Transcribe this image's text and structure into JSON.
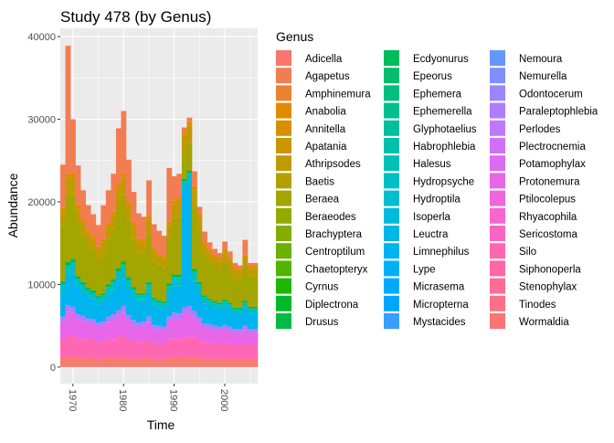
{
  "chart_data": {
    "type": "bar",
    "stacked": true,
    "title": "Study 478 (by Genus)",
    "xlabel": "Time",
    "ylabel": "Abundance",
    "xlim": [
      1967.5,
      2006.5
    ],
    "ylim": [
      -2000,
      41000
    ],
    "x_ticks": [
      1970,
      1980,
      1990,
      2000
    ],
    "y_ticks": [
      0,
      10000,
      20000,
      30000,
      40000
    ],
    "y_tick_labels": [
      "0",
      "10000",
      "20000",
      "30000",
      "40000"
    ],
    "x_tick_labels": [
      "1970",
      "1980",
      "1990",
      "2000"
    ],
    "grid": true,
    "legend": {
      "title": "Genus",
      "placement": "right",
      "columns": 3,
      "entries": [
        {
          "name": "Adicella",
          "color": "#F8766D"
        },
        {
          "name": "Agapetus",
          "color": "#F27D52"
        },
        {
          "name": "Amphinemura",
          "color": "#EA8331"
        },
        {
          "name": "Anabolia",
          "color": "#E28A00"
        },
        {
          "name": "Annitella",
          "color": "#D89000"
        },
        {
          "name": "Apatania",
          "color": "#CC9600"
        },
        {
          "name": "Athripsodes",
          "color": "#C09B00"
        },
        {
          "name": "Baetis",
          "color": "#B3A000"
        },
        {
          "name": "Beraea",
          "color": "#A3A500"
        },
        {
          "name": "Beraeodes",
          "color": "#93AA00"
        },
        {
          "name": "Brachyptera",
          "color": "#81AE00"
        },
        {
          "name": "Centroptilum",
          "color": "#6BB100"
        },
        {
          "name": "Chaetopteryx",
          "color": "#50B400"
        },
        {
          "name": "Cyrnus",
          "color": "#1FB700"
        },
        {
          "name": "Diplectrona",
          "color": "#00B929"
        },
        {
          "name": "Drusus",
          "color": "#00BB44"
        },
        {
          "name": "Ecdyonurus",
          "color": "#00BC59"
        },
        {
          "name": "Epeorus",
          "color": "#00BE6C"
        },
        {
          "name": "Ephemera",
          "color": "#00BF7D"
        },
        {
          "name": "Ephemerella",
          "color": "#00C08D"
        },
        {
          "name": "Glyphotaelius",
          "color": "#00C09C"
        },
        {
          "name": "Habrophlebia",
          "color": "#00C1AA"
        },
        {
          "name": "Halesus",
          "color": "#00C0B8"
        },
        {
          "name": "Hydropsyche",
          "color": "#00BFC4"
        },
        {
          "name": "Hydroptila",
          "color": "#00BDD0"
        },
        {
          "name": "Isoperla",
          "color": "#00BBDB"
        },
        {
          "name": "Leuctra",
          "color": "#00B8E5"
        },
        {
          "name": "Limnephilus",
          "color": "#00B4EF"
        },
        {
          "name": "Lype",
          "color": "#00B0F6"
        },
        {
          "name": "Micrasema",
          "color": "#00ABFD"
        },
        {
          "name": "Micropterna",
          "color": "#00A5FF"
        },
        {
          "name": "Mystacides",
          "color": "#369EFF"
        },
        {
          "name": "Nemoura",
          "color": "#6497FF"
        },
        {
          "name": "Nemurella",
          "color": "#808FFF"
        },
        {
          "name": "Odontocerum",
          "color": "#9A87FF"
        },
        {
          "name": "Paraleptophlebia",
          "color": "#AE7EFF"
        },
        {
          "name": "Perlodes",
          "color": "#C077FF"
        },
        {
          "name": "Plectrocnemia",
          "color": "#D070FF"
        },
        {
          "name": "Potamophylax",
          "color": "#DD6BF3"
        },
        {
          "name": "Protonemura",
          "color": "#E866E8"
        },
        {
          "name": "Ptilocolepus",
          "color": "#F066DC"
        },
        {
          "name": "Rhyacophila",
          "color": "#F766CF"
        },
        {
          "name": "Sericostoma",
          "color": "#FC66C2"
        },
        {
          "name": "Silo",
          "color": "#FF66B4"
        },
        {
          "name": "Siphonoperla",
          "color": "#FF68A4"
        },
        {
          "name": "Stenophylax",
          "color": "#FF6C95"
        },
        {
          "name": "Tinodes",
          "color": "#FF6F85"
        },
        {
          "name": "Wormaldia",
          "color": "#FD7476"
        }
      ]
    },
    "years": [
      1968,
      1969,
      1970,
      1971,
      1972,
      1973,
      1974,
      1975,
      1976,
      1977,
      1978,
      1979,
      1980,
      1981,
      1982,
      1983,
      1984,
      1985,
      1986,
      1987,
      1988,
      1989,
      1990,
      1991,
      1992,
      1993,
      1994,
      1995,
      1996,
      1997,
      1998,
      1999,
      2000,
      2001,
      2002,
      2003,
      2004,
      2005,
      2006
    ],
    "series": [
      {
        "color": "#F77B6E",
        "values": [
          1100,
          1100,
          1100,
          1100,
          1100,
          1100,
          1100,
          1000,
          1000,
          1100,
          1100,
          1100,
          1100,
          1000,
          1000,
          1000,
          1100,
          1100,
          1000,
          1000,
          1000,
          1100,
          1100,
          1100,
          1100,
          1100,
          1100,
          1100,
          1000,
          1000,
          1000,
          1000,
          1000,
          1000,
          1000,
          1000,
          1000,
          1000,
          1000
        ]
      },
      {
        "color": "#FF66B4",
        "values": [
          2200,
          2700,
          2700,
          2400,
          2300,
          2200,
          2200,
          2000,
          2100,
          2300,
          2300,
          2600,
          2700,
          2300,
          2100,
          2000,
          2000,
          2200,
          1900,
          1800,
          1800,
          2300,
          2400,
          2300,
          2500,
          2600,
          2500,
          2200,
          2000,
          1900,
          1800,
          1800,
          1900,
          1800,
          1700,
          1700,
          1800,
          1700,
          1700
        ]
      },
      {
        "color": "#E866E8",
        "values": [
          2200,
          2900,
          2800,
          2300,
          2200,
          2000,
          2000,
          1900,
          1900,
          2100,
          2300,
          2500,
          2800,
          2300,
          2000,
          1900,
          1900,
          2200,
          1700,
          1700,
          1600,
          2100,
          2400,
          2400,
          2800,
          2900,
          2500,
          2100,
          1800,
          1800,
          1700,
          1600,
          1700,
          1600,
          1500,
          1500,
          1700,
          1500,
          1500
        ]
      },
      {
        "color": "#AE7EFF",
        "values": [
          600,
          800,
          700,
          600,
          600,
          600,
          500,
          500,
          500,
          600,
          700,
          700,
          800,
          700,
          600,
          500,
          500,
          600,
          500,
          500,
          500,
          600,
          700,
          700,
          800,
          800,
          700,
          600,
          500,
          500,
          500,
          500,
          500,
          500,
          400,
          400,
          500,
          400,
          400
        ]
      },
      {
        "color": "#00B4EF",
        "values": [
          3000,
          3600,
          4000,
          3200,
          2800,
          2500,
          2400,
          2200,
          2400,
          2700,
          2900,
          3500,
          3700,
          3200,
          2800,
          2500,
          2400,
          2900,
          2300,
          2200,
          2100,
          2800,
          3200,
          3300,
          14300,
          15200,
          3600,
          3000,
          2400,
          2200,
          2100,
          2000,
          2200,
          2000,
          1800,
          1800,
          2100,
          1900,
          1900
        ]
      },
      {
        "color": "#00BFC4",
        "values": [
          1000,
          1200,
          1400,
          1100,
          1000,
          900,
          800,
          800,
          800,
          900,
          1000,
          1200,
          1300,
          1100,
          900,
          800,
          800,
          1000,
          800,
          700,
          700,
          900,
          1100,
          1100,
          1000,
          900,
          1200,
          1000,
          800,
          700,
          700,
          700,
          700,
          700,
          600,
          600,
          700,
          600,
          600
        ]
      },
      {
        "color": "#00BB44",
        "values": [
          300,
          400,
          400,
          300,
          300,
          300,
          300,
          200,
          200,
          300,
          300,
          400,
          400,
          300,
          300,
          200,
          200,
          300,
          200,
          200,
          200,
          300,
          300,
          300,
          300,
          300,
          300,
          300,
          200,
          200,
          200,
          200,
          200,
          200,
          200,
          200,
          200,
          200,
          200
        ]
      },
      {
        "color": "#A3A500",
        "values": [
          6700,
          8000,
          7800,
          6500,
          5700,
          5200,
          4800,
          4500,
          4900,
          5500,
          6100,
          7500,
          8000,
          6800,
          5800,
          5000,
          4800,
          5900,
          4500,
          4300,
          4100,
          5600,
          6700,
          7000,
          3200,
          3300,
          7500,
          6200,
          4800,
          4400,
          4200,
          4000,
          4500,
          4100,
          3600,
          3500,
          4100,
          3700,
          3700
        ]
      },
      {
        "color": "#C09B00",
        "values": [
          1700,
          2100,
          2000,
          1700,
          1500,
          1400,
          1300,
          1200,
          1300,
          1500,
          1600,
          2000,
          2100,
          1800,
          1500,
          1300,
          1300,
          1600,
          1200,
          1100,
          1100,
          1500,
          1800,
          1800,
          2000,
          2100,
          2000,
          1600,
          1300,
          1200,
          1100,
          1100,
          1200,
          1100,
          1000,
          900,
          1100,
          1000,
          1000
        ]
      },
      {
        "color": "#E28A00",
        "values": [
          500,
          600,
          600,
          500,
          400,
          400,
          400,
          300,
          400,
          400,
          500,
          600,
          600,
          500,
          400,
          400,
          400,
          500,
          300,
          300,
          300,
          400,
          500,
          500,
          500,
          500,
          500,
          500,
          400,
          300,
          300,
          300,
          300,
          300,
          300,
          300,
          300,
          300,
          300
        ]
      },
      {
        "color": "#F27D52",
        "values": [
          5200,
          15500,
          6500,
          4700,
          3500,
          3000,
          2700,
          2600,
          4100,
          4000,
          4600,
          6800,
          7500,
          5100,
          3800,
          3000,
          2800,
          4300,
          2900,
          2700,
          2500,
          6500,
          2900,
          2900,
          500,
          500,
          1800,
          800,
          1200,
          900,
          700,
          600,
          1000,
          700,
          500,
          400,
          1900,
          300,
          300
        ]
      }
    ]
  }
}
